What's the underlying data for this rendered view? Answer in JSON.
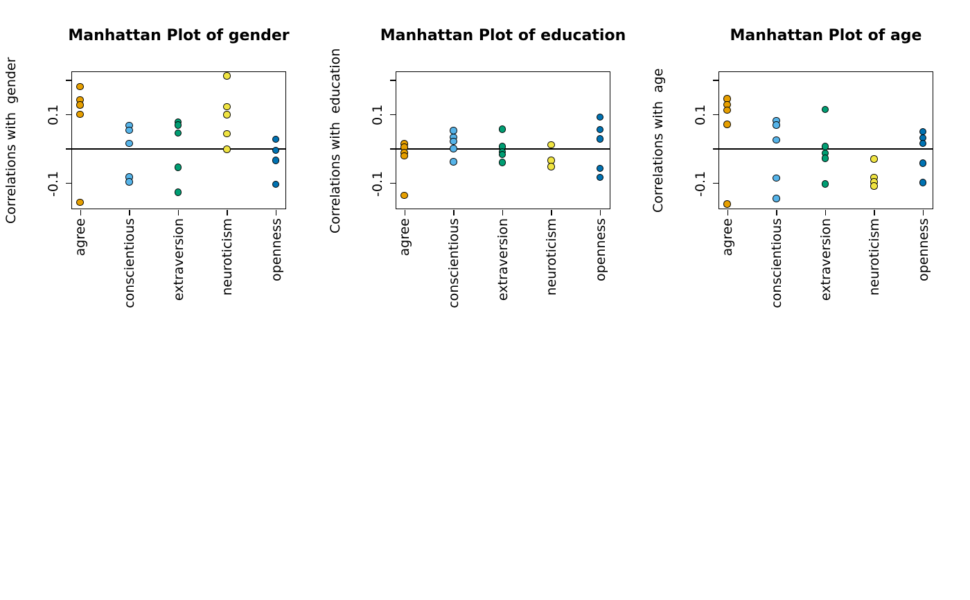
{
  "figure": {
    "background": "#ffffff",
    "text_color": "#000000",
    "palette_note": "Okabe-Ito colorblind palette, one color per trait, points pch21 black outline"
  },
  "chart_data": [
    {
      "type": "scatter",
      "title": "Manhattan Plot of gender",
      "ylabel": "Correlations with  gender",
      "xlabel": "",
      "grid": false,
      "legend": "none",
      "zero_reference_line": true,
      "ylim": [
        -0.175,
        0.227
      ],
      "yticks": [
        {
          "value": 0.2,
          "label": ""
        },
        {
          "value": 0.1,
          "label": "0.1"
        },
        {
          "value": 0.0,
          "label": ""
        },
        {
          "value": -0.1,
          "label": "-0.1"
        }
      ],
      "categories": [
        "agree",
        "conscientious",
        "extraversion",
        "neuroticism",
        "openness"
      ],
      "series": [
        {
          "name": "agree",
          "color": "#E69F00",
          "values": [
            0.181,
            0.142,
            0.127,
            0.1,
            -0.157
          ]
        },
        {
          "name": "conscientious",
          "color": "#56B4E9",
          "values": [
            0.067,
            0.053,
            0.015,
            -0.083,
            -0.097
          ]
        },
        {
          "name": "extraversion",
          "color": "#009E73",
          "values": [
            0.078,
            0.068,
            0.045,
            -0.055,
            -0.127
          ]
        },
        {
          "name": "neuroticism",
          "color": "#F0E442",
          "values": [
            0.212,
            0.122,
            0.099,
            0.043,
            -0.002
          ]
        },
        {
          "name": "openness",
          "color": "#0072B2",
          "values": [
            0.027,
            -0.005,
            -0.035,
            -0.104
          ]
        }
      ]
    },
    {
      "type": "scatter",
      "title": "Manhattan Plot of education",
      "ylabel": "Correlations with  education",
      "xlabel": "",
      "grid": false,
      "legend": "none",
      "zero_reference_line": true,
      "ylim": [
        -0.175,
        0.227
      ],
      "yticks": [
        {
          "value": 0.2,
          "label": ""
        },
        {
          "value": 0.1,
          "label": "0.1"
        },
        {
          "value": 0.0,
          "label": ""
        },
        {
          "value": -0.1,
          "label": "-0.1"
        }
      ],
      "categories": [
        "agree",
        "conscientious",
        "extraversion",
        "neuroticism",
        "openness"
      ],
      "series": [
        {
          "name": "agree",
          "color": "#E69F00",
          "values": [
            0.014,
            0.004,
            -0.012,
            -0.021,
            -0.137
          ]
        },
        {
          "name": "conscientious",
          "color": "#56B4E9",
          "values": [
            0.052,
            0.033,
            0.021,
            0.0,
            -0.039
          ]
        },
        {
          "name": "extraversion",
          "color": "#009E73",
          "values": [
            0.056,
            0.006,
            -0.009,
            -0.017,
            -0.041
          ]
        },
        {
          "name": "neuroticism",
          "color": "#F0E442",
          "values": [
            0.011,
            -0.035,
            -0.053
          ]
        },
        {
          "name": "openness",
          "color": "#0072B2",
          "values": [
            0.092,
            0.055,
            0.028,
            -0.058,
            -0.084
          ]
        }
      ]
    },
    {
      "type": "scatter",
      "title": "Manhattan Plot of age",
      "ylabel": "Correlations with  age",
      "xlabel": "",
      "grid": false,
      "legend": "none",
      "zero_reference_line": true,
      "ylim": [
        -0.175,
        0.227
      ],
      "yticks": [
        {
          "value": 0.2,
          "label": ""
        },
        {
          "value": 0.1,
          "label": "0.1"
        },
        {
          "value": 0.0,
          "label": ""
        },
        {
          "value": -0.1,
          "label": "-0.1"
        }
      ],
      "categories": [
        "agree",
        "conscientious",
        "extraversion",
        "neuroticism",
        "openness"
      ],
      "series": [
        {
          "name": "agree",
          "color": "#E69F00",
          "values": [
            0.145,
            0.128,
            0.112,
            0.071,
            -0.162
          ]
        },
        {
          "name": "conscientious",
          "color": "#56B4E9",
          "values": [
            0.082,
            0.068,
            0.025,
            -0.086,
            -0.146
          ]
        },
        {
          "name": "extraversion",
          "color": "#009E73",
          "values": [
            0.114,
            0.006,
            -0.013,
            -0.028,
            -0.103
          ]
        },
        {
          "name": "neuroticism",
          "color": "#F0E442",
          "values": [
            -0.031,
            -0.084,
            -0.097,
            -0.109
          ]
        },
        {
          "name": "openness",
          "color": "#0072B2",
          "values": [
            0.049,
            0.031,
            0.015,
            -0.043,
            -0.099
          ]
        }
      ]
    }
  ]
}
